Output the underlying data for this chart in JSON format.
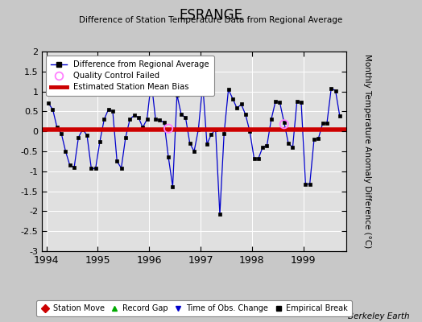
{
  "title": "ESRANGE",
  "subtitle": "Difference of Station Temperature Data from Regional Average",
  "ylabel": "Monthly Temperature Anomaly Difference (°C)",
  "xlabel_note": "Berkeley Earth",
  "bias": 0.05,
  "ylim": [
    -3,
    2
  ],
  "xlim_start": 1993.92,
  "xlim_end": 1999.83,
  "bg_color": "#c8c8c8",
  "plot_bg_color": "#e0e0e0",
  "grid_color": "#ffffff",
  "line_color": "#0000cc",
  "bias_color": "#cc0000",
  "qc_color": "#ff80ff",
  "marker_color": "#000000",
  "times": [
    1994.042,
    1994.125,
    1994.208,
    1994.292,
    1994.375,
    1994.458,
    1994.542,
    1994.625,
    1994.708,
    1994.792,
    1994.875,
    1994.958,
    1995.042,
    1995.125,
    1995.208,
    1995.292,
    1995.375,
    1995.458,
    1995.542,
    1995.625,
    1995.708,
    1995.792,
    1995.875,
    1995.958,
    1996.042,
    1996.125,
    1996.208,
    1996.292,
    1996.375,
    1996.458,
    1996.542,
    1996.625,
    1996.708,
    1996.792,
    1996.875,
    1996.958,
    1997.042,
    1997.125,
    1997.208,
    1997.292,
    1997.375,
    1997.458,
    1997.542,
    1997.625,
    1997.708,
    1997.792,
    1997.875,
    1997.958,
    1998.042,
    1998.125,
    1998.208,
    1998.292,
    1998.375,
    1998.458,
    1998.542,
    1998.625,
    1998.708,
    1998.792,
    1998.875,
    1998.958,
    1999.042,
    1999.125,
    1999.208,
    1999.292,
    1999.375,
    1999.458,
    1999.542,
    1999.625,
    1999.708
  ],
  "values": [
    0.7,
    0.55,
    0.1,
    -0.05,
    -0.5,
    -0.85,
    -0.9,
    -0.15,
    0.05,
    -0.1,
    -0.93,
    -0.93,
    -0.25,
    0.3,
    0.55,
    0.5,
    -0.75,
    -0.92,
    -0.15,
    0.3,
    0.4,
    0.35,
    0.1,
    0.3,
    1.25,
    0.3,
    0.28,
    0.22,
    -0.65,
    -1.38,
    0.92,
    0.42,
    0.35,
    -0.3,
    -0.5,
    0.05,
    1.18,
    -0.32,
    -0.08,
    0.05,
    -2.08,
    -0.05,
    1.05,
    0.82,
    0.58,
    0.68,
    0.42,
    0.0,
    -0.68,
    -0.68,
    -0.4,
    -0.35,
    0.3,
    0.75,
    0.72,
    0.22,
    -0.3,
    -0.4,
    0.75,
    0.72,
    -1.32,
    -1.32,
    -0.2,
    -0.18,
    0.2,
    0.2,
    1.08,
    1.02,
    0.38
  ],
  "qc_failed_times": [
    1996.375,
    1998.625
  ],
  "qc_failed_values": [
    0.07,
    0.18
  ],
  "yticks": [
    -3,
    -2.5,
    -2,
    -1.5,
    -1,
    -0.5,
    0,
    0.5,
    1,
    1.5,
    2
  ],
  "xticks": [
    1994,
    1995,
    1996,
    1997,
    1998,
    1999
  ],
  "xtick_labels": [
    "1994",
    "1995",
    "1996",
    "1997",
    "1998",
    "1999"
  ]
}
